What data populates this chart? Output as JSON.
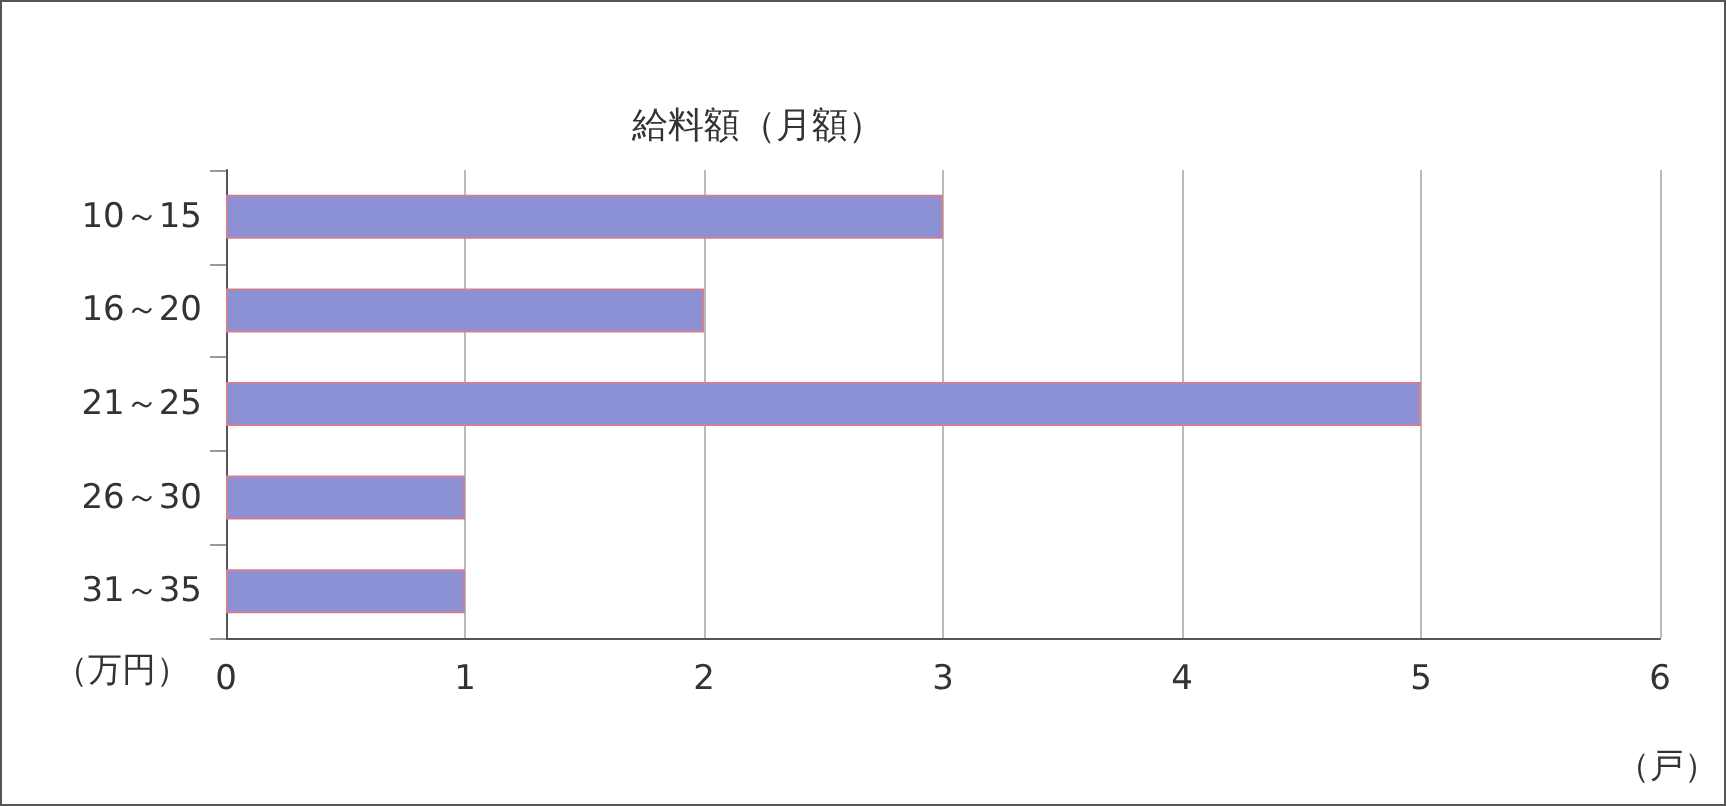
{
  "chart_data": {
    "type": "bar",
    "orientation": "horizontal",
    "title": "給料額（月額）",
    "xlabel": "（戸）",
    "ylabel": "（万円）",
    "categories": [
      "10～15",
      "16～20",
      "21～25",
      "26～30",
      "31～35"
    ],
    "values": [
      3,
      2,
      5,
      1,
      1
    ],
    "color": "#8c90d4",
    "xlim": [
      0,
      6
    ],
    "xticks": [
      0,
      1,
      2,
      3,
      4,
      5,
      6
    ],
    "grid": "x"
  }
}
